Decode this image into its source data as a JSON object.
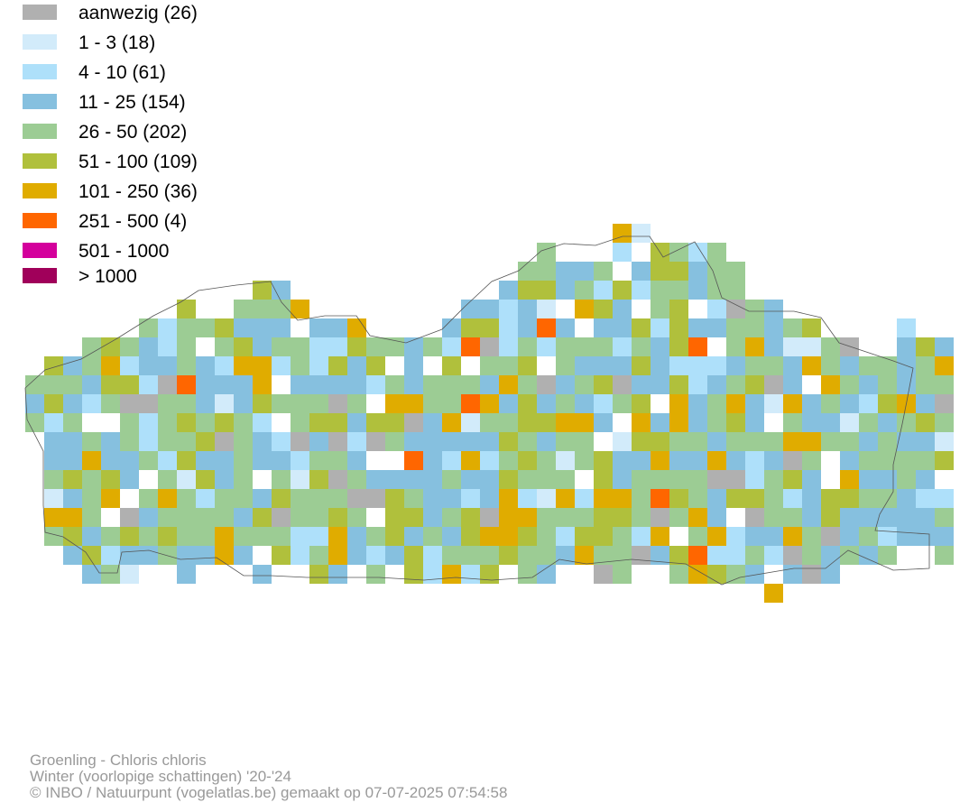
{
  "legend": {
    "items": [
      {
        "label": "aanwezig (26)",
        "color": "#b0b0b0"
      },
      {
        "label": "1 - 3 (18)",
        "color": "#d2ebfa"
      },
      {
        "label": "4 - 10 (61)",
        "color": "#aee0fa"
      },
      {
        "label": "11 - 25 (154)",
        "color": "#86c0df"
      },
      {
        "label": "26 - 50 (202)",
        "color": "#9ccc94"
      },
      {
        "label": "51 - 100 (109)",
        "color": "#b0c03c"
      },
      {
        "label": "101 - 250 (36)",
        "color": "#e0ac00"
      },
      {
        "label": "251 - 500 (4)",
        "color": "#ff6600"
      },
      {
        "label": "501 - 1000",
        "color": "#d4009c"
      },
      {
        "label": "> 1000",
        "color": "#a0005a"
      }
    ]
  },
  "footer": {
    "species": "Groenling - Chloris chloris",
    "season": "Winter (voorlopige schattingen) '20-'24",
    "credit": "© INBO / Natuurpunt (vogelatlas.be) gemaakt op 07-07-2025 07:54:58"
  }
}
